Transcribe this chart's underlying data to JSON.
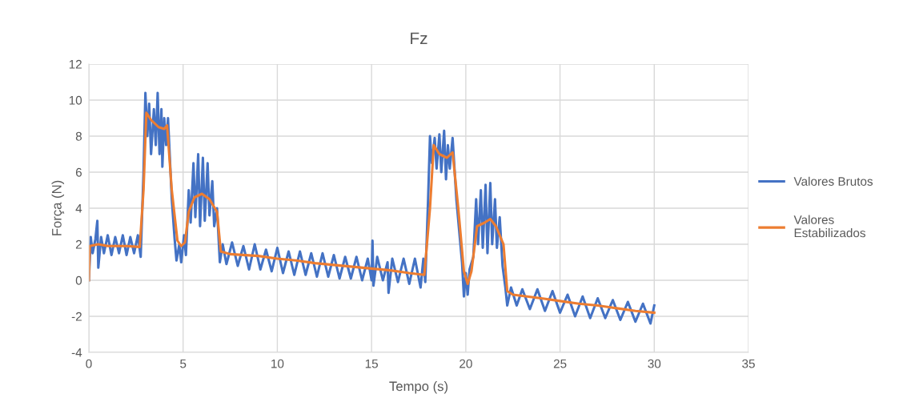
{
  "chart_data": {
    "type": "line",
    "title": "Fz",
    "xlabel": "Tempo (s)",
    "ylabel": "Força (N)",
    "xlim": [
      0,
      35
    ],
    "xticks": [
      0,
      5,
      10,
      15,
      20,
      25,
      30,
      35
    ],
    "ylim": [
      -4,
      12
    ],
    "yticks": [
      -4,
      -2,
      0,
      2,
      4,
      6,
      8,
      10,
      12
    ],
    "grid": true,
    "legend": "right",
    "marker": "none",
    "line_style": "solid",
    "series": [
      {
        "name": "Valores Brutos",
        "color": "#4472c4",
        "x": [
          0,
          0.1,
          0.2,
          0.35,
          0.45,
          0.5,
          0.65,
          0.8,
          1.0,
          1.2,
          1.4,
          1.6,
          1.8,
          2.0,
          2.2,
          2.4,
          2.6,
          2.75,
          2.9,
          3.0,
          3.1,
          3.2,
          3.3,
          3.45,
          3.55,
          3.65,
          3.75,
          3.85,
          3.9,
          4.0,
          4.1,
          4.2,
          4.4,
          4.55,
          4.65,
          4.8,
          4.9,
          5.05,
          5.15,
          5.3,
          5.4,
          5.55,
          5.65,
          5.8,
          5.9,
          6.05,
          6.15,
          6.3,
          6.4,
          6.55,
          6.65,
          6.8,
          6.95,
          7.1,
          7.3,
          7.6,
          7.9,
          8.2,
          8.5,
          8.8,
          9.1,
          9.4,
          9.7,
          10.0,
          10.3,
          10.6,
          10.9,
          11.2,
          11.5,
          11.8,
          12.1,
          12.4,
          12.7,
          13.0,
          13.3,
          13.6,
          13.9,
          14.2,
          14.5,
          14.8,
          15.0,
          15.05,
          15.1,
          15.3,
          15.6,
          15.85,
          15.9,
          16.1,
          16.4,
          16.7,
          17.0,
          17.3,
          17.6,
          17.75,
          17.85,
          18.0,
          18.1,
          18.2,
          18.35,
          18.45,
          18.6,
          18.7,
          18.85,
          18.95,
          19.05,
          19.15,
          19.3,
          19.5,
          19.8,
          19.9,
          20.0,
          20.1,
          20.2,
          20.4,
          20.55,
          20.65,
          20.8,
          20.9,
          21.05,
          21.15,
          21.3,
          21.4,
          21.55,
          21.65,
          21.8,
          21.95,
          22.1,
          22.2,
          22.4,
          22.7,
          23.0,
          23.4,
          23.8,
          24.2,
          24.6,
          25.0,
          25.4,
          25.8,
          26.2,
          26.6,
          27.0,
          27.4,
          27.8,
          28.2,
          28.6,
          29.0,
          29.4,
          29.8,
          30.0
        ],
        "values": [
          0,
          2.4,
          1.5,
          2.3,
          3.3,
          0.7,
          2.4,
          1.5,
          2.5,
          1.4,
          2.4,
          1.5,
          2.5,
          1.4,
          2.4,
          1.5,
          2.5,
          1.3,
          6,
          10.4,
          8.0,
          9.8,
          7.0,
          9.5,
          7.5,
          10.4,
          7.0,
          9.5,
          6.3,
          9.0,
          7.5,
          9.0,
          4.5,
          2.3,
          1.1,
          2.0,
          1.0,
          2.5,
          1.4,
          5.0,
          3.2,
          6.5,
          3.5,
          7.0,
          3.0,
          6.8,
          3.3,
          6.5,
          3.6,
          5.5,
          3.0,
          4.0,
          1.0,
          2.0,
          0.9,
          2.1,
          0.8,
          1.9,
          0.6,
          2.0,
          0.6,
          1.7,
          0.5,
          1.8,
          0.4,
          1.6,
          0.3,
          1.6,
          0.3,
          1.5,
          0.2,
          1.5,
          0.2,
          1.4,
          0.1,
          1.3,
          0.1,
          1.3,
          0.0,
          1.2,
          0.0,
          2.2,
          -0.3,
          1.3,
          0.0,
          1.0,
          -0.7,
          1.2,
          -0.1,
          1.2,
          -0.2,
          1.2,
          -0.4,
          1.2,
          -0.1,
          4.5,
          8.0,
          6.5,
          7.9,
          6.2,
          8.1,
          6.0,
          8.3,
          5.6,
          7.5,
          6.2,
          7.9,
          4.5,
          1.0,
          -0.9,
          0.4,
          -0.8,
          0.6,
          1.3,
          4.5,
          2.0,
          5.0,
          1.8,
          5.3,
          1.5,
          5.4,
          2.0,
          4.5,
          1.8,
          3.5,
          0.8,
          -0.4,
          -1.4,
          -0.4,
          -1.4,
          -0.5,
          -1.6,
          -0.5,
          -1.7,
          -0.6,
          -1.8,
          -0.8,
          -2.0,
          -0.9,
          -2.1,
          -1.0,
          -2.1,
          -1.1,
          -2.2,
          -1.2,
          -2.3,
          -1.3,
          -2.4,
          -1.4
        ]
      },
      {
        "name": "Valores Estabilizados",
        "color": "#ed7d31",
        "x": [
          0,
          0.05,
          0.5,
          1,
          2,
          2.7,
          2.9,
          3.05,
          3.3,
          3.7,
          4.0,
          4.15,
          4.4,
          4.7,
          4.9,
          5.1,
          5.3,
          5.6,
          6.0,
          6.4,
          6.8,
          7.0,
          7.5,
          9,
          10,
          11,
          12,
          13,
          14,
          15,
          16,
          17,
          17.8,
          18.1,
          18.3,
          18.6,
          19,
          19.3,
          19.6,
          19.9,
          20.1,
          20.3,
          20.6,
          21,
          21.3,
          21.6,
          22,
          22.2,
          22.5,
          24,
          25,
          26,
          27,
          28,
          29,
          30
        ],
        "values": [
          0,
          1.9,
          2.0,
          1.9,
          1.9,
          1.85,
          5,
          9.3,
          8.9,
          8.5,
          8.4,
          8.6,
          5,
          2.2,
          1.9,
          2.1,
          3.8,
          4.6,
          4.8,
          4.5,
          3.8,
          1.6,
          1.45,
          1.35,
          1.2,
          1.1,
          0.95,
          0.85,
          0.75,
          0.65,
          0.55,
          0.4,
          0.3,
          4,
          7.5,
          7.0,
          6.8,
          7.1,
          4,
          0.5,
          -0.2,
          0.5,
          3,
          3.2,
          3.4,
          3.0,
          2.0,
          -0.6,
          -0.8,
          -1.0,
          -1.15,
          -1.3,
          -1.4,
          -1.55,
          -1.7,
          -1.8
        ]
      }
    ]
  }
}
